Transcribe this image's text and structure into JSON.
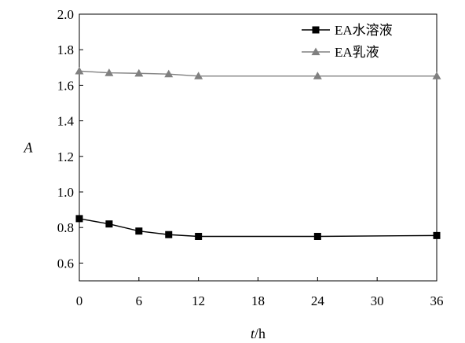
{
  "chart_data": {
    "type": "line",
    "xlabel": "t/h",
    "ylabel": "A",
    "xlim": [
      0,
      36
    ],
    "ylim": [
      0.5,
      2.0
    ],
    "xticks": [
      0,
      6,
      12,
      18,
      24,
      30,
      36
    ],
    "yticks": [
      0.6,
      0.8,
      1.0,
      1.2,
      1.4,
      1.6,
      1.8,
      2.0
    ],
    "grid": false,
    "legend_position": "top-right",
    "x": [
      0,
      3,
      6,
      9,
      12,
      24,
      36
    ],
    "series": [
      {
        "name": "EA水溶液",
        "color": "#000000",
        "marker": "square",
        "values": [
          0.85,
          0.82,
          0.78,
          0.76,
          0.75,
          0.75,
          0.755
        ]
      },
      {
        "name": "EA乳液",
        "color": "#808080",
        "marker": "triangle",
        "values": [
          1.68,
          1.67,
          1.667,
          1.663,
          1.652,
          1.652,
          1.652
        ]
      }
    ]
  }
}
